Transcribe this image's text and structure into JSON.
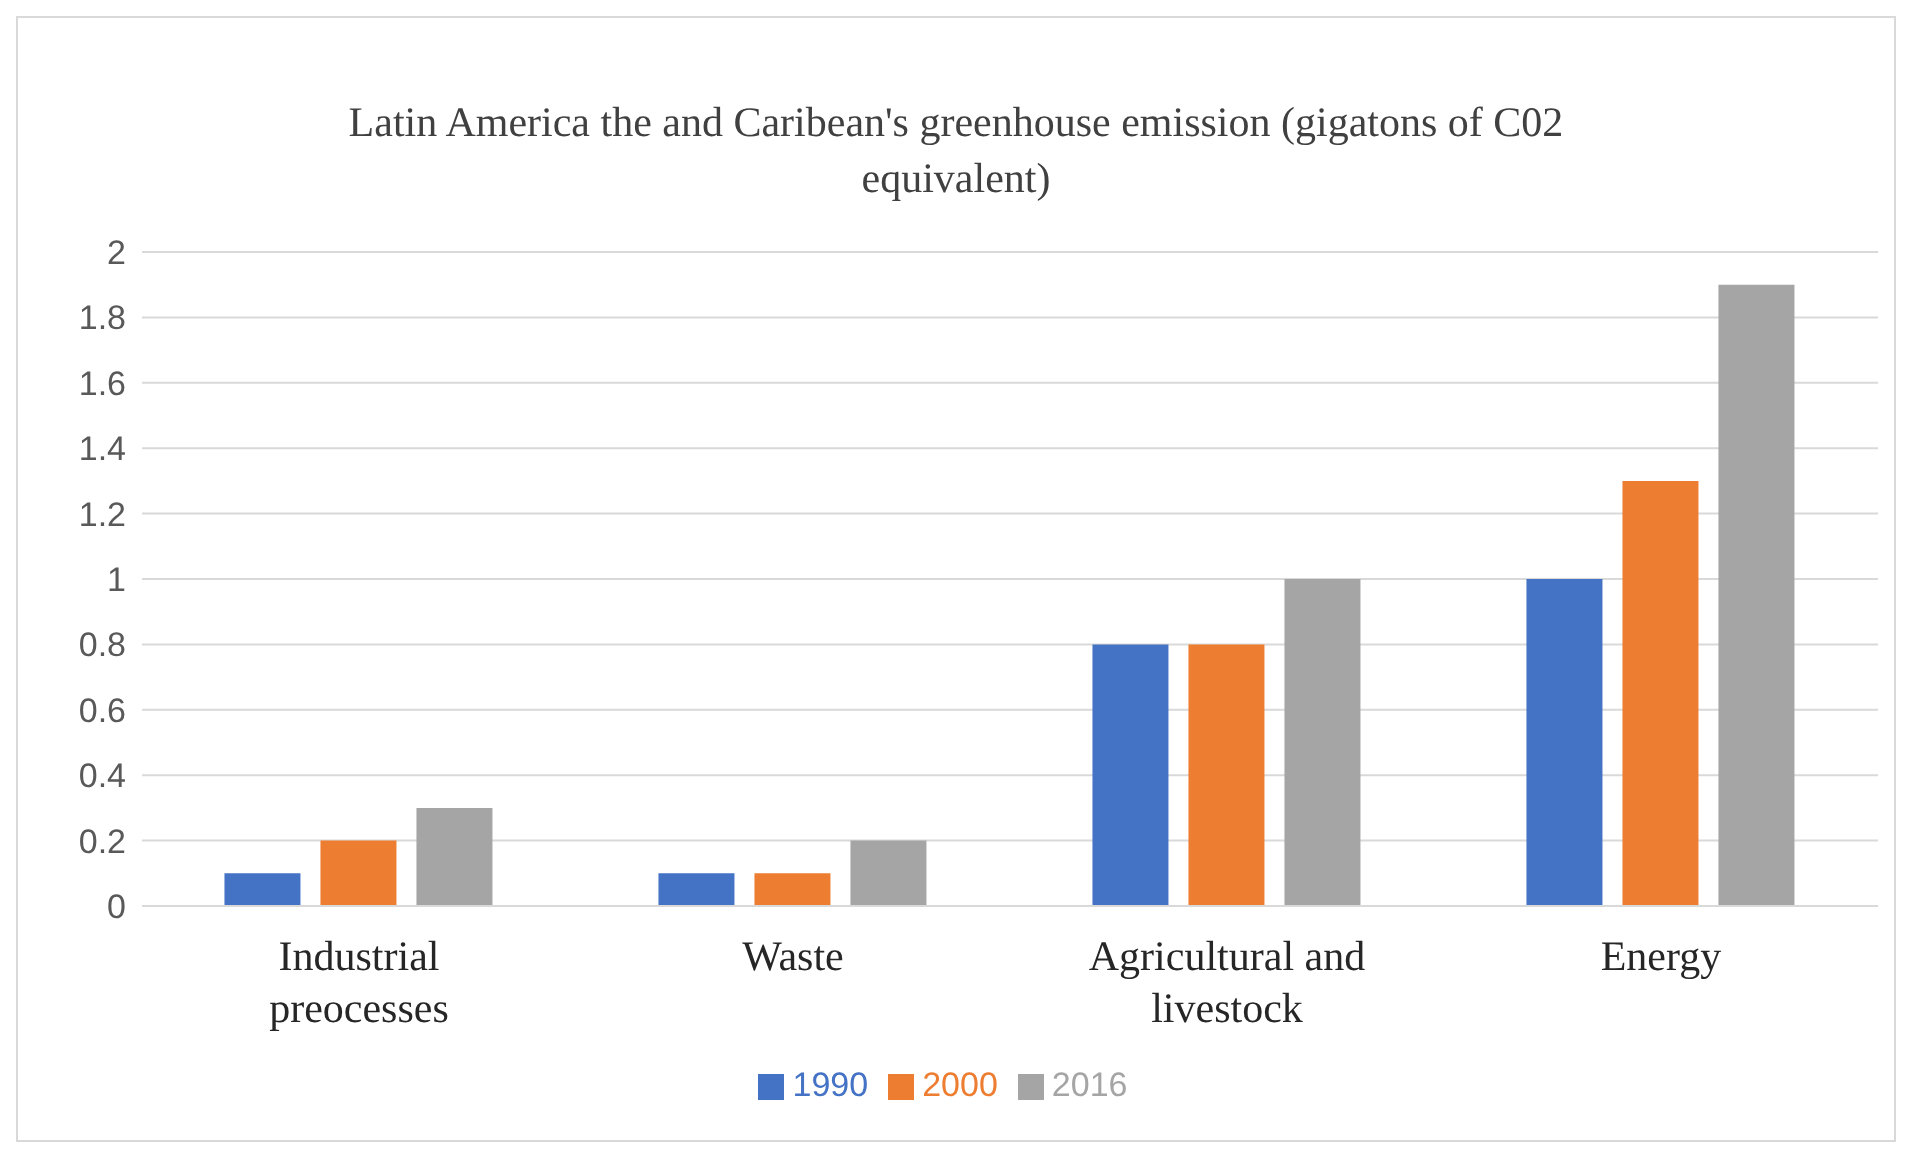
{
  "chart_data": {
    "type": "bar",
    "title": "Latin America the and Caribean's greenhouse emission (gigatons of C02 equivalent)",
    "categories": [
      "Industrial preocesses",
      "Waste",
      "Agricultural and livestock",
      "Energy"
    ],
    "series": [
      {
        "name": "1990",
        "color": "#4472c4",
        "values": [
          0.1,
          0.1,
          0.8,
          1.0
        ]
      },
      {
        "name": "2000",
        "color": "#ed7d31",
        "values": [
          0.2,
          0.1,
          0.8,
          1.3
        ]
      },
      {
        "name": "2016",
        "color": "#a5a5a5",
        "values": [
          0.3,
          0.2,
          1.0,
          1.9
        ]
      }
    ],
    "ylim": [
      0,
      2
    ],
    "yticks": [
      0,
      0.2,
      0.4,
      0.6,
      0.8,
      1,
      1.2,
      1.4,
      1.6,
      1.8,
      2
    ],
    "grid": "y",
    "legend": "bottom"
  }
}
